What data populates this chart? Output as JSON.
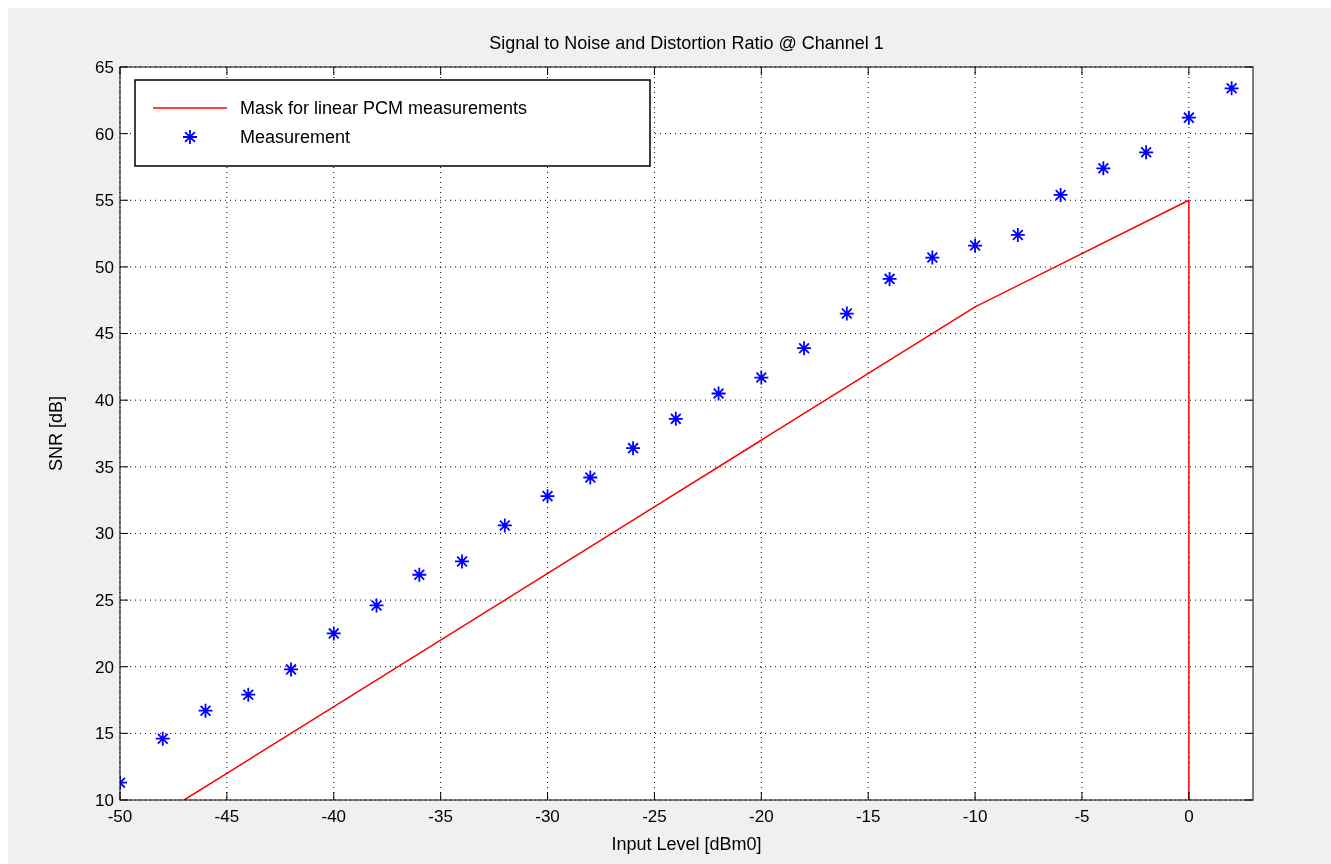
{
  "chart_data": {
    "type": "scatter",
    "title": "Signal to Noise and Distortion Ratio @ Channel 1",
    "xlabel": "Input Level [dBm0]",
    "ylabel": "SNR [dB]",
    "xlim": [
      -50,
      3
    ],
    "ylim": [
      10,
      65
    ],
    "xticks": [
      -50,
      -45,
      -40,
      -35,
      -30,
      -25,
      -20,
      -15,
      -10,
      -5,
      0
    ],
    "yticks": [
      10,
      15,
      20,
      25,
      30,
      35,
      40,
      45,
      50,
      55,
      60,
      65
    ],
    "grid": true,
    "legend": "top left",
    "series": [
      {
        "name": "Mask for linear PCM measurements",
        "type": "line",
        "color": "#ff0000",
        "line_style": "solid",
        "marker": "none",
        "x": [
          -47,
          -10,
          0,
          0
        ],
        "values": [
          10,
          47,
          55,
          10
        ]
      },
      {
        "name": "Measurement",
        "color": "#0000ff",
        "marker": "cross",
        "x": [
          -50,
          -48,
          -46,
          -44,
          -42,
          -40,
          -38,
          -36,
          -34,
          -32,
          -30,
          -28,
          -26,
          -24,
          -22,
          -20,
          -18,
          -16,
          -14,
          -12,
          -10,
          -8,
          -6,
          -4,
          -2,
          0,
          2
        ],
        "values": [
          11.3,
          14.6,
          16.7,
          17.9,
          19.8,
          22.5,
          24.6,
          26.9,
          27.9,
          30.6,
          32.8,
          34.2,
          36.4,
          38.6,
          40.5,
          41.7,
          43.9,
          46.5,
          49.1,
          50.7,
          51.6,
          52.4,
          55.4,
          57.4,
          58.6,
          61.2,
          63.4
        ]
      }
    ]
  }
}
